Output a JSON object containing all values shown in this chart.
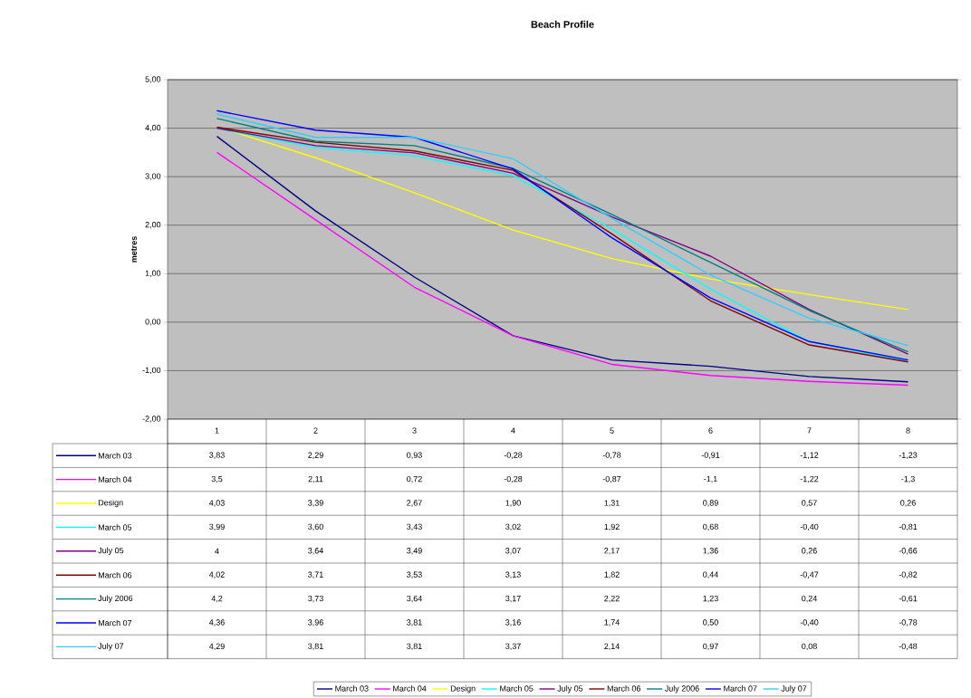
{
  "chart_data": {
    "type": "line",
    "title": "Beach Profile",
    "ylabel": "metres",
    "categories": [
      "1",
      "2",
      "3",
      "4",
      "5",
      "6",
      "7",
      "8"
    ],
    "ylim": [
      -2,
      5
    ],
    "yticks": [
      {
        "value": -2,
        "label": "-2,00"
      },
      {
        "value": -1,
        "label": "-1,00"
      },
      {
        "value": 0,
        "label": "0,00"
      },
      {
        "value": 1,
        "label": "1,00"
      },
      {
        "value": 2,
        "label": "2,00"
      },
      {
        "value": 3,
        "label": "3,00"
      },
      {
        "value": 4,
        "label": "4,00"
      },
      {
        "value": 5,
        "label": "5,00"
      }
    ],
    "grid": "y",
    "legend": "bottom",
    "marker": "none",
    "line_style": "solid",
    "series": [
      {
        "name": "March 03",
        "color": "#000080",
        "values": [
          3.83,
          2.29,
          0.93,
          -0.28,
          -0.78,
          -0.91,
          -1.12,
          -1.23
        ],
        "value_labels": [
          "3,83",
          "2,29",
          "0,93",
          "-0,28",
          "-0,78",
          "-0,91",
          "-1,12",
          "-1,23"
        ]
      },
      {
        "name": "March 04",
        "color": "#ff00ff",
        "values": [
          3.5,
          2.11,
          0.72,
          -0.28,
          -0.87,
          -1.1,
          -1.22,
          -1.3
        ],
        "value_labels": [
          "3,5",
          "2,11",
          "0,72",
          "-0,28",
          "-0,87",
          "-1,1",
          "-1,22",
          "-1,3"
        ]
      },
      {
        "name": "Design",
        "color": "#ffff00",
        "values": [
          4.03,
          3.39,
          2.67,
          1.9,
          1.31,
          0.89,
          0.57,
          0.26
        ],
        "value_labels": [
          "4,03",
          "3,39",
          "2,67",
          "1,90",
          "1,31",
          "0,89",
          "0,57",
          "0,26"
        ]
      },
      {
        "name": "March 05",
        "color": "#00ffff",
        "values": [
          3.99,
          3.6,
          3.43,
          3.02,
          1.92,
          0.68,
          -0.4,
          -0.81
        ],
        "value_labels": [
          "3,99",
          "3,60",
          "3,43",
          "3,02",
          "1,92",
          "0,68",
          "-0,40",
          "-0,81"
        ]
      },
      {
        "name": "July 05",
        "color": "#800080",
        "values": [
          4,
          3.64,
          3.49,
          3.07,
          2.17,
          1.36,
          0.26,
          -0.66
        ],
        "value_labels": [
          "4",
          "3,64",
          "3,49",
          "3,07",
          "2,17",
          "1,36",
          "0,26",
          "-0,66"
        ]
      },
      {
        "name": "March 06",
        "color": "#800000",
        "values": [
          4.02,
          3.71,
          3.53,
          3.13,
          1.82,
          0.44,
          -0.47,
          -0.82
        ],
        "value_labels": [
          "4,02",
          "3,71",
          "3,53",
          "3,13",
          "1,82",
          "0,44",
          "-0,47",
          "-0,82"
        ]
      },
      {
        "name": "July 2006",
        "color": "#008080",
        "values": [
          4.2,
          3.73,
          3.64,
          3.17,
          2.22,
          1.23,
          0.24,
          -0.61
        ],
        "value_labels": [
          "4,2",
          "3,73",
          "3,64",
          "3,17",
          "2,22",
          "1,23",
          "0,24",
          "-0,61"
        ]
      },
      {
        "name": "March 07",
        "color": "#0000ff",
        "values": [
          4.36,
          3.96,
          3.81,
          3.16,
          1.74,
          0.5,
          -0.4,
          -0.78
        ],
        "value_labels": [
          "4,36",
          "3,96",
          "3,81",
          "3,16",
          "1,74",
          "0,50",
          "-0,40",
          "-0,78"
        ]
      },
      {
        "name": "July 07",
        "color": "#33ccff",
        "values": [
          4.29,
          3.81,
          3.81,
          3.37,
          2.14,
          0.97,
          0.08,
          -0.48
        ],
        "value_labels": [
          "4,29",
          "3,81",
          "3,81",
          "3,37",
          "2,14",
          "0,97",
          "0,08",
          "-0,48"
        ]
      }
    ]
  }
}
